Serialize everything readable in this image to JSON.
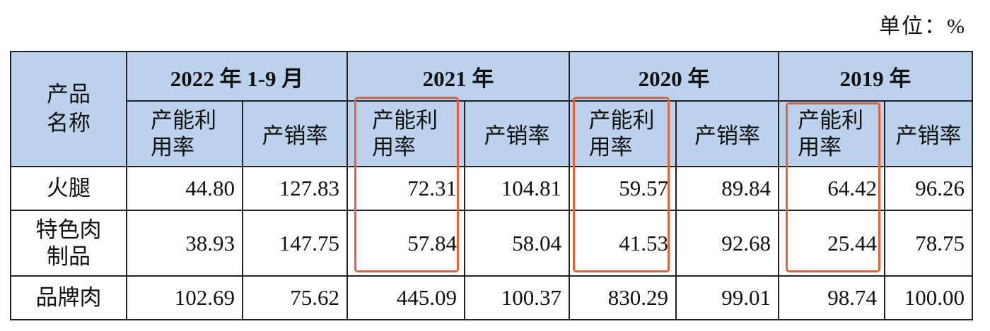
{
  "unit": "单位：%",
  "table": {
    "header": {
      "product": "产品名称",
      "years": [
        "2022 年 1-9 月",
        "2021 年",
        "2020 年",
        "2019 年"
      ],
      "sub": [
        "产能利用率",
        "产销率"
      ]
    },
    "rows": [
      {
        "name": "火腿",
        "values": [
          "44.80",
          "127.83",
          "72.31",
          "104.81",
          "59.57",
          "89.84",
          "64.42",
          "96.26"
        ]
      },
      {
        "name": "特色肉制品",
        "values": [
          "38.93",
          "147.75",
          "57.84",
          "58.04",
          "41.53",
          "92.68",
          "25.44",
          "78.75"
        ]
      },
      {
        "name": "品牌肉",
        "values": [
          "102.69",
          "75.62",
          "445.09",
          "100.37",
          "830.29",
          "99.01",
          "98.74",
          "100.00"
        ]
      }
    ]
  }
}
